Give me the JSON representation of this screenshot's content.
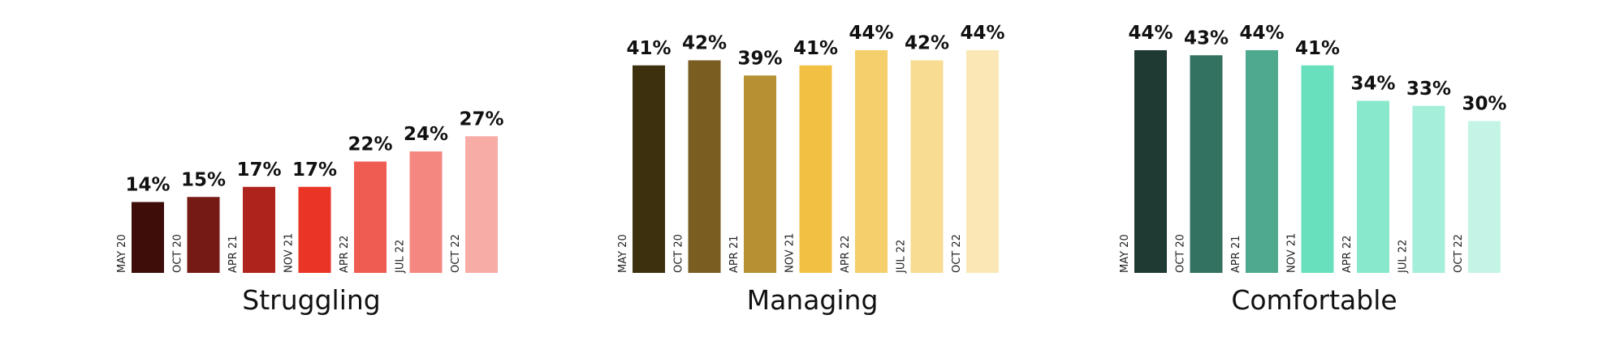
{
  "chart_data": [
    {
      "type": "bar",
      "title": "Struggling",
      "categories": [
        "MAY 20",
        "OCT 20",
        "APR 21",
        "NOV 21",
        "APR 22",
        "JUL 22",
        "OCT 22"
      ],
      "values": [
        14,
        15,
        17,
        17,
        22,
        24,
        27
      ],
      "value_labels": [
        "14%",
        "15%",
        "17%",
        "17%",
        "22%",
        "24%",
        "27%"
      ],
      "colors": [
        "#3e0d09",
        "#761a15",
        "#ae241d",
        "#e93426",
        "#ef5c52",
        "#f48880",
        "#f7aca6"
      ],
      "ylim": [
        0,
        46
      ],
      "grid": false,
      "legend": "none"
    },
    {
      "type": "bar",
      "title": "Managing",
      "categories": [
        "MAY 20",
        "OCT 20",
        "APR 21",
        "NOV 21",
        "APR 22",
        "JUL 22",
        "OCT 22"
      ],
      "values": [
        41,
        42,
        39,
        41,
        44,
        42,
        44
      ],
      "value_labels": [
        "41%",
        "42%",
        "39%",
        "41%",
        "44%",
        "42%",
        "44%"
      ],
      "colors": [
        "#3d300f",
        "#7a5d20",
        "#b69033",
        "#f2c144",
        "#f5cf6b",
        "#f7dc92",
        "#fae7b5"
      ],
      "ylim": [
        0,
        46
      ],
      "grid": false,
      "legend": "none"
    },
    {
      "type": "bar",
      "title": "Comfortable",
      "categories": [
        "MAY 20",
        "OCT 20",
        "APR 21",
        "NOV 21",
        "APR 22",
        "JUL 22",
        "OCT 22"
      ],
      "values": [
        44,
        43,
        44,
        41,
        34,
        33,
        30
      ],
      "value_labels": [
        "44%",
        "43%",
        "44%",
        "41%",
        "34%",
        "33%",
        "30%"
      ],
      "colors": [
        "#1e3a32",
        "#337160",
        "#4fa98f",
        "#68e0bd",
        "#88e8cb",
        "#a5eed9",
        "#c3f4e5"
      ],
      "ylim": [
        0,
        46
      ],
      "grid": false,
      "legend": "none"
    }
  ]
}
